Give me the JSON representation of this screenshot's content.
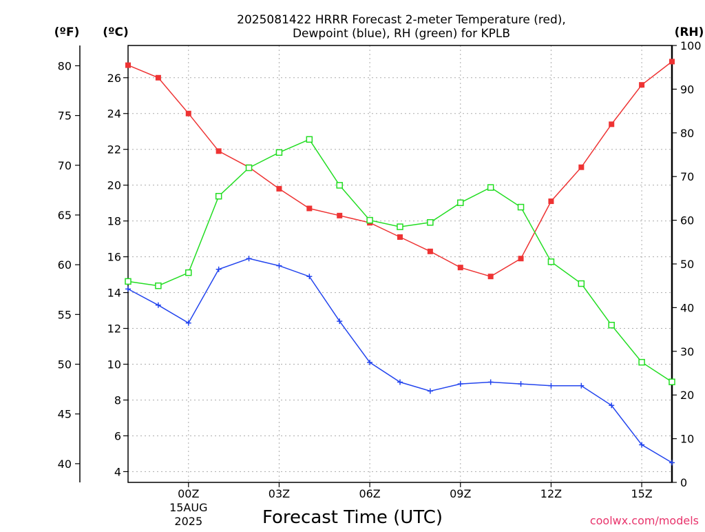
{
  "chart_data": {
    "type": "line",
    "title_line1": "2025081422 HRRR Forecast 2-meter Temperature (red),",
    "title_line2": "Dewpoint (blue), RH (green) for KPLB",
    "unit_f": "(ºF)",
    "unit_c": "(ºC)",
    "unit_rh": "(RH)",
    "xlabel": "Forecast Time (UTC)",
    "credit": "coolwx.com/models",
    "hours": [
      -2,
      -1,
      0,
      1,
      2,
      3,
      4,
      5,
      6,
      7,
      8,
      9,
      10,
      11,
      12,
      13,
      14,
      15,
      16
    ],
    "x_ticks": [
      {
        "hour": 0,
        "label": "00Z",
        "sub1": "15AUG",
        "sub2": "2025"
      },
      {
        "hour": 3,
        "label": "03Z"
      },
      {
        "hour": 6,
        "label": "06Z"
      },
      {
        "hour": 9,
        "label": "09Z"
      },
      {
        "hour": 12,
        "label": "12Z"
      },
      {
        "hour": 15,
        "label": "15Z"
      }
    ],
    "xlim": [
      -2,
      16
    ],
    "ylim_c": [
      3.4,
      27.8
    ],
    "ylim_f": [
      38.12,
      82.04
    ],
    "ylim_rh": [
      0,
      100
    ],
    "c_ticks": [
      4,
      6,
      8,
      10,
      12,
      14,
      16,
      18,
      20,
      22,
      24,
      26
    ],
    "f_ticks": [
      40,
      45,
      50,
      55,
      60,
      65,
      70,
      75,
      80
    ],
    "rh_ticks": [
      0,
      10,
      20,
      30,
      40,
      50,
      60,
      70,
      80,
      90,
      100
    ],
    "grid": true,
    "colors": {
      "temperature": "#ee3333",
      "dewpoint": "#2244ee",
      "rh": "#22dd22"
    },
    "series": [
      {
        "key": "temperature",
        "axis": "c",
        "values": [
          26.7,
          26.0,
          24.0,
          21.9,
          21.0,
          19.8,
          18.7,
          18.3,
          17.9,
          17.1,
          16.3,
          15.4,
          14.9,
          15.9,
          19.1,
          21.0,
          23.4,
          25.6,
          26.9
        ]
      },
      {
        "key": "dewpoint",
        "axis": "c",
        "values": [
          14.2,
          13.3,
          12.3,
          15.3,
          15.9,
          15.5,
          14.9,
          12.4,
          10.1,
          9.0,
          8.5,
          8.9,
          9.0,
          8.9,
          8.8,
          8.8,
          7.7,
          5.5,
          4.5
        ]
      },
      {
        "key": "rh",
        "axis": "rh",
        "values": [
          46,
          45,
          48,
          65.5,
          72,
          75.5,
          78.5,
          68,
          60,
          58.5,
          59.5,
          64,
          67.5,
          63,
          50.5,
          45.5,
          36,
          27.5,
          23
        ]
      }
    ]
  }
}
